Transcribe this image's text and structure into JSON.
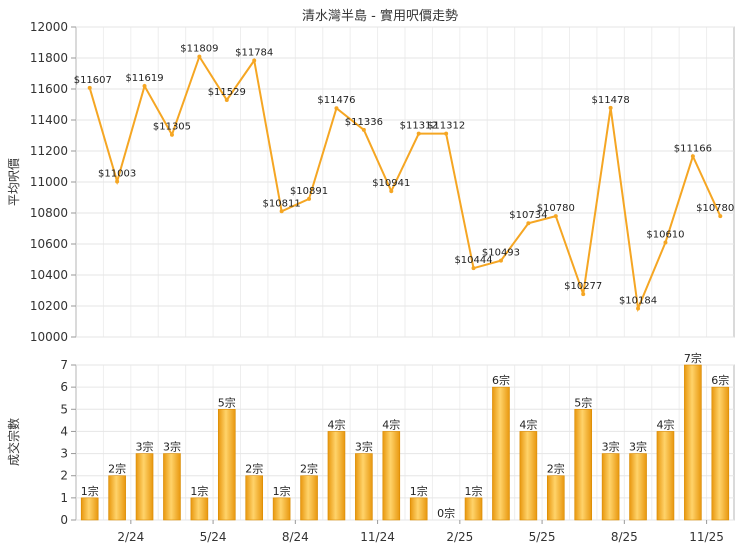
{
  "chart_data": [
    {
      "type": "line",
      "title": "清水灣半島 - 實用呎價走勢",
      "ylabel": "平均呎價",
      "ylim": [
        10000,
        12000
      ],
      "yticks": [
        10000,
        10200,
        10400,
        10600,
        10800,
        11000,
        11200,
        11400,
        11600,
        11800,
        12000
      ],
      "grid": true,
      "color": "#F5A623",
      "series": [
        {
          "values": [
            11607,
            11003,
            11619,
            11305,
            11809,
            11529,
            11784,
            10811,
            10891,
            11476,
            11336,
            10941,
            11312,
            11312,
            10444,
            10493,
            10734,
            10780,
            10277,
            11478,
            10184,
            10610,
            11166,
            10780
          ],
          "labels": [
            "$11607",
            "$11003",
            "$11619",
            "$11305",
            "$11809",
            "$11529",
            "$11784",
            "$10811",
            "$10891",
            "$11476",
            "$11336",
            "$10941",
            "$11312",
            "$11312",
            "$10444",
            "$10493",
            "$10734",
            "$10780",
            "$10277",
            "$11478",
            "$10184",
            "$10610",
            "$11166",
            "$10780"
          ]
        }
      ]
    },
    {
      "type": "bar",
      "ylabel": "成交宗數",
      "ylim": [
        0,
        7
      ],
      "yticks": [
        0,
        1,
        2,
        3,
        4,
        5,
        6,
        7
      ],
      "grid": true,
      "color": "#F5A623",
      "x_tick_labels": [
        "2/24",
        "5/24",
        "8/24",
        "11/24",
        "2/25",
        "5/25",
        "8/25",
        "11/25"
      ],
      "x_tick_positions": [
        1.5,
        4.5,
        7.5,
        10.5,
        13.5,
        16.5,
        19.5,
        22.5
      ],
      "series": [
        {
          "values": [
            1,
            2,
            3,
            3,
            1,
            5,
            2,
            1,
            2,
            4,
            3,
            4,
            1,
            0,
            1,
            6,
            4,
            2,
            5,
            3,
            3,
            4,
            7,
            6
          ],
          "labels": [
            "1宗",
            "2宗",
            "3宗",
            "3宗",
            "1宗",
            "5宗",
            "2宗",
            "1宗",
            "2宗",
            "4宗",
            "3宗",
            "4宗",
            "1宗",
            "0宗",
            "1宗",
            "6宗",
            "4宗",
            "2宗",
            "5宗",
            "3宗",
            "3宗",
            "4宗",
            "7宗",
            "6宗"
          ]
        }
      ]
    }
  ]
}
